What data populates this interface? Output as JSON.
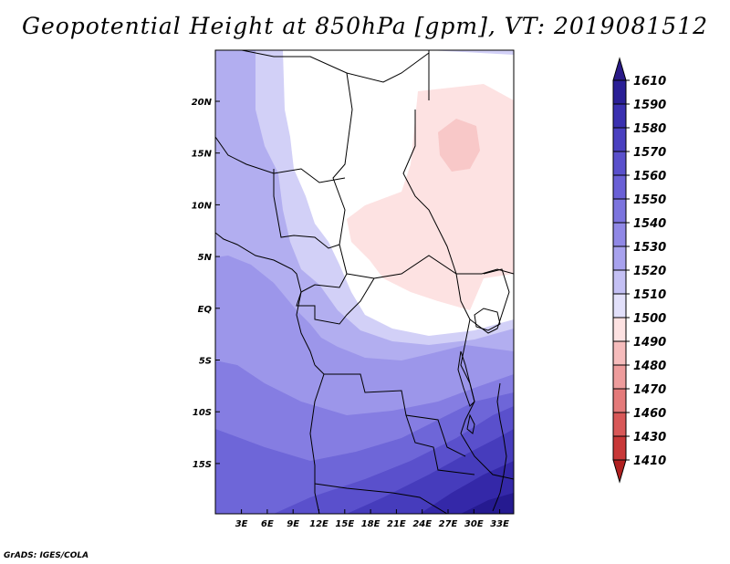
{
  "title": "Geopotential Height at 850hPa [gpm], VT: 2019081512",
  "credit": "GrADS: IGES/COLA",
  "map": {
    "lon_labels": [
      "3E",
      "6E",
      "9E",
      "12E",
      "15E",
      "18E",
      "21E",
      "24E",
      "27E",
      "30E",
      "33E"
    ],
    "lat_labels": [
      "20N",
      "15N",
      "10N",
      "5N",
      "EQ",
      "5S",
      "10S",
      "15S"
    ]
  },
  "colorbar": {
    "levels": [
      "1610",
      "1590",
      "1580",
      "1570",
      "1560",
      "1550",
      "1540",
      "1530",
      "1520",
      "1510",
      "1500",
      "1490",
      "1480",
      "1470",
      "1460",
      "1430",
      "1410"
    ],
    "colors": [
      "#2a1f96",
      "#3a30b0",
      "#4a40c0",
      "#5a50cc",
      "#6a60d6",
      "#7c74de",
      "#9088e6",
      "#a8a2ee",
      "#c4c0f4",
      "#e2e0fa",
      "#fde2e2",
      "#f6bcbc",
      "#ee9c9c",
      "#e47a7a",
      "#d85858",
      "#c83838",
      "#a82020"
    ],
    "arrow_top_color": "#2a1a88",
    "arrow_bottom_color": "#b02020"
  }
}
